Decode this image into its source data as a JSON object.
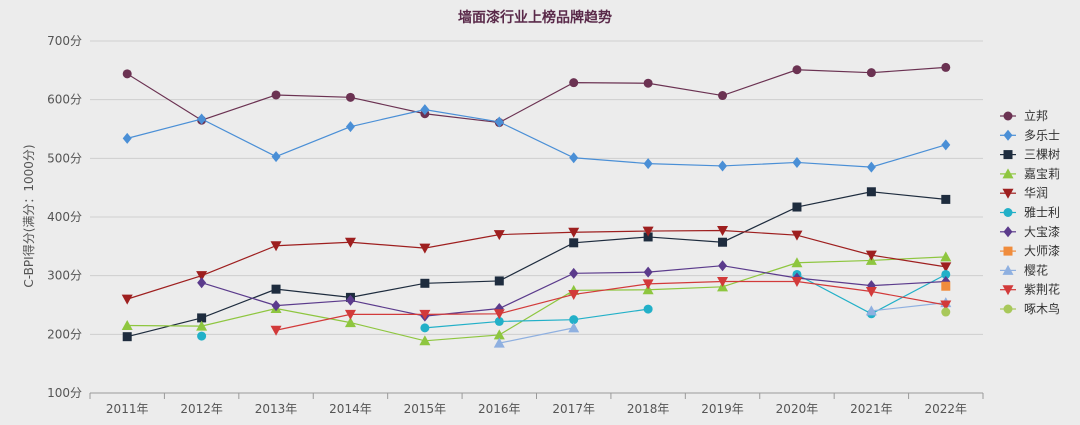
{
  "chart_data": {
    "type": "line",
    "title": "墙面漆行业上榜品牌趋势",
    "ylabel": "C-BPI得分(满分：1000分)",
    "xlabel": "",
    "ylim": [
      100,
      700
    ],
    "grid": true,
    "legend_position": "right",
    "categories": [
      "2011年",
      "2012年",
      "2013年",
      "2014年",
      "2015年",
      "2016年",
      "2017年",
      "2018年",
      "2019年",
      "2020年",
      "2021年",
      "2022年"
    ],
    "yticks": [
      "100分",
      "200分",
      "300分",
      "400分",
      "500分",
      "600分",
      "700分"
    ],
    "series": [
      {
        "name": "立邦",
        "color": "#6b3252",
        "marker": "circle",
        "values": [
          644,
          565,
          608,
          604,
          576,
          561,
          629,
          628,
          607,
          651,
          646,
          655
        ]
      },
      {
        "name": "多乐士",
        "color": "#4a8fd6",
        "marker": "diamond",
        "values": [
          534,
          567,
          503,
          554,
          583,
          562,
          501,
          491,
          487,
          493,
          485,
          523
        ]
      },
      {
        "name": "三棵树",
        "color": "#1e2c3e",
        "marker": "square",
        "values": [
          196,
          228,
          277,
          263,
          287,
          291,
          356,
          366,
          357,
          417,
          443,
          430
        ]
      },
      {
        "name": "嘉宝莉",
        "color": "#8ec63f",
        "marker": "triangle-up",
        "values": [
          215,
          214,
          244,
          220,
          189,
          199,
          275,
          276,
          281,
          322,
          326,
          332
        ]
      },
      {
        "name": "华润",
        "color": "#9e1f1f",
        "marker": "triangle-down",
        "values": [
          260,
          300,
          351,
          357,
          347,
          370,
          374,
          376,
          377,
          369,
          335,
          315
        ]
      },
      {
        "name": "雅士利",
        "color": "#22b0c8",
        "marker": "circle",
        "values": [
          null,
          197,
          null,
          null,
          211,
          222,
          225,
          243,
          null,
          302,
          235,
          302
        ]
      },
      {
        "name": "大宝漆",
        "color": "#5b3b8c",
        "marker": "diamond",
        "values": [
          null,
          288,
          249,
          258,
          231,
          244,
          304,
          306,
          317,
          296,
          283,
          290
        ]
      },
      {
        "name": "大师漆",
        "color": "#f08c3c",
        "marker": "square",
        "values": [
          null,
          null,
          null,
          null,
          null,
          null,
          null,
          null,
          null,
          null,
          null,
          282
        ]
      },
      {
        "name": "樱花",
        "color": "#8fb0e0",
        "marker": "triangle-up",
        "values": [
          null,
          null,
          null,
          null,
          null,
          185,
          211,
          null,
          null,
          null,
          240,
          254
        ]
      },
      {
        "name": "紫荆花",
        "color": "#d23a3a",
        "marker": "triangle-down",
        "values": [
          null,
          null,
          207,
          234,
          234,
          235,
          268,
          286,
          290,
          290,
          273,
          250
        ]
      },
      {
        "name": "啄木鸟",
        "color": "#a8c85a",
        "marker": "circle",
        "values": [
          null,
          null,
          null,
          null,
          null,
          null,
          null,
          null,
          null,
          null,
          null,
          238
        ]
      }
    ]
  }
}
